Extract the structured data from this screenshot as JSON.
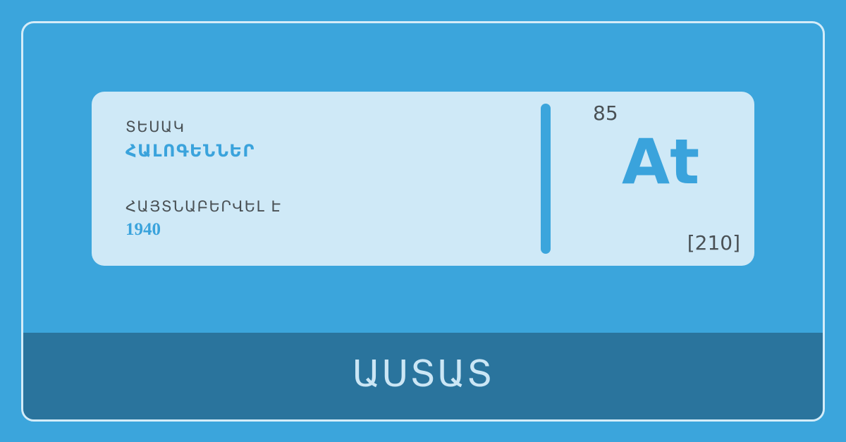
{
  "card": {
    "type_label": "ՏԵՍԱԿ",
    "type_value": "ՀԱԼՈԳԵՆՆԵՐ",
    "discovered_label": "ՀԱՅՏՆԱԲԵՐՎԵԼ Է",
    "discovered_value": "1940",
    "atomic_number": "85",
    "symbol": "At",
    "atomic_mass": "[210]"
  },
  "footer": {
    "element_name": "ԱՍՏԱՏ"
  },
  "colors": {
    "background": "#3ba5dc",
    "card": "#cfe9f7",
    "accent": "#3aa3dc",
    "footer": "#2a749d",
    "text_dark": "#4a5155"
  }
}
